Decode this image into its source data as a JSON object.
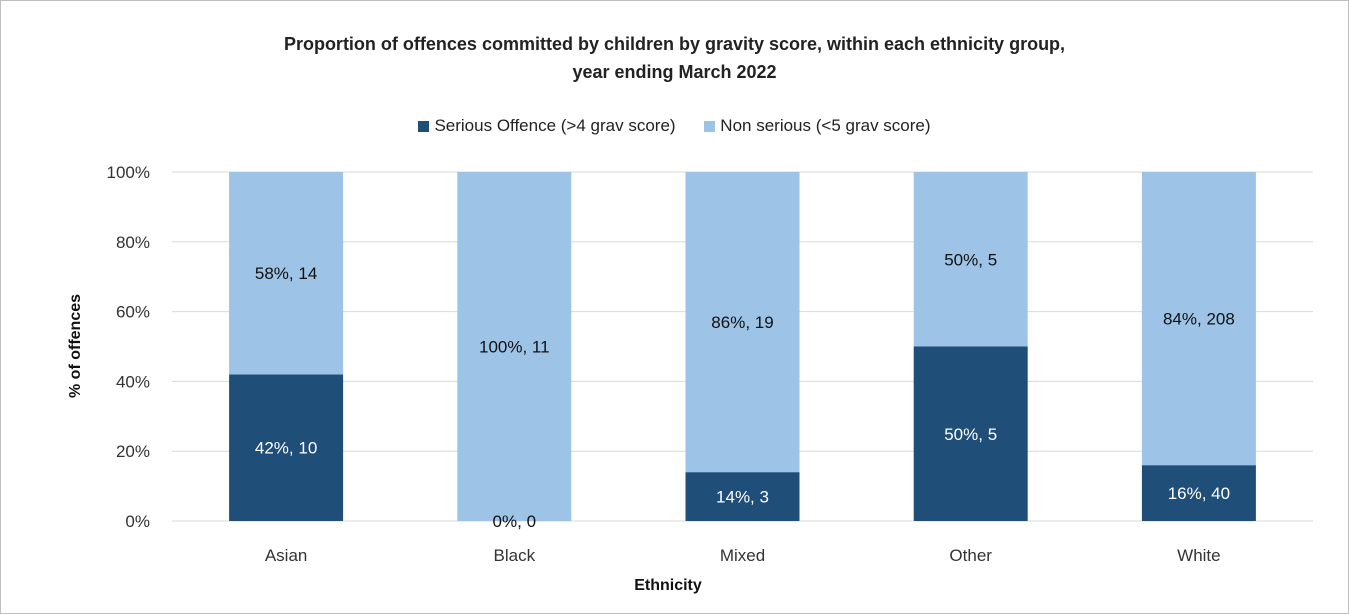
{
  "chart_data": {
    "type": "bar",
    "stacked": true,
    "title_line1": "Proportion of offences committed by children by gravity score, within each ethnicity group,",
    "title_line2": "year ending March 2022",
    "xlabel": "Ethnicity",
    "ylabel": "% of offences",
    "ylim": [
      0,
      100
    ],
    "yticks": [
      "0%",
      "20%",
      "40%",
      "60%",
      "80%",
      "100%"
    ],
    "categories": [
      "Asian",
      "Black",
      "Mixed",
      "Other",
      "White"
    ],
    "legend_position": "top",
    "grid": true,
    "series": [
      {
        "name": "Serious Offence (>4 grav score)",
        "color": "#1f4e79",
        "values": [
          42,
          0,
          14,
          50,
          16
        ],
        "labels": [
          "42%, 10",
          "0%, 0",
          "14%, 3",
          "50%, 5",
          "16%, 40"
        ]
      },
      {
        "name": "Non serious (<5 grav score)",
        "color": "#9dc3e6",
        "values": [
          58,
          100,
          86,
          50,
          84
        ],
        "labels": [
          "58%, 14",
          "100%, 11",
          "86%, 19",
          "50%, 5",
          "84%, 208"
        ]
      }
    ]
  }
}
